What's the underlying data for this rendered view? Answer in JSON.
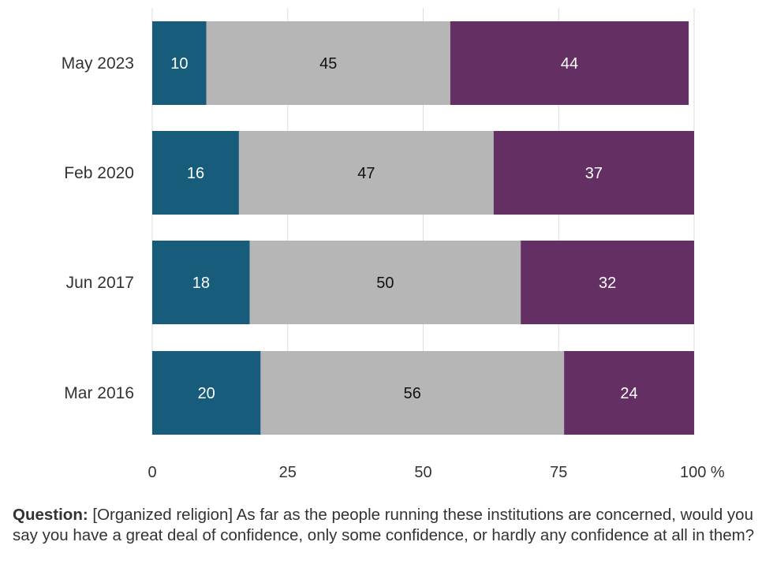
{
  "colors": {
    "great_deal": "#175c7a",
    "only_some": "#b6b6b6",
    "hardly_any": "#642f62",
    "grid": "#dddddd",
    "tick_text": "#333333"
  },
  "chart_data": {
    "type": "bar",
    "orientation": "horizontal",
    "stacked": true,
    "categories": [
      "May 2023",
      "Feb 2020",
      "Jun 2017",
      "Mar 2016"
    ],
    "series": [
      {
        "values": [
          10,
          16,
          18,
          20
        ]
      },
      {
        "values": [
          45,
          47,
          50,
          56
        ]
      },
      {
        "values": [
          44,
          37,
          32,
          24
        ]
      }
    ],
    "xlim": [
      0,
      100
    ],
    "x_ticks": [
      "0",
      "25",
      "50",
      "75",
      "100 %"
    ],
    "grid": true,
    "legend": "none"
  },
  "caption": {
    "label": "Question:",
    "text": " [Organized religion] As far as the people running these institutions are concerned, would you say you have  a great deal of confidence, only some confidence, or hardly any confidence at all in them?"
  }
}
